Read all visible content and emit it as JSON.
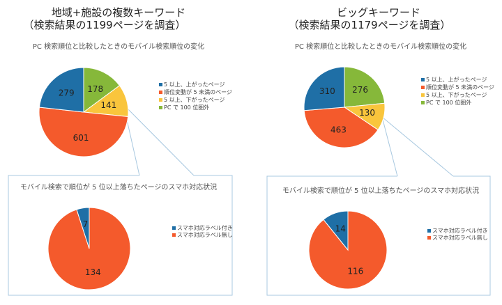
{
  "chart_data": [
    {
      "type": "pie",
      "group_title": [
        "地域+施設の複数キーワード",
        "（検索結果の1199ページを調査）"
      ],
      "title": "PC 検索順位と比較したときのモバイル検索順位の変化",
      "categories": [
        "5 以上、上がったページ",
        "順位変動が 5 未満のページ",
        "5 以上、下がったページ",
        "PC で 100 位圏外"
      ],
      "values": [
        279,
        601,
        141,
        178
      ],
      "colors": [
        "#1f6fa6",
        "#f45a2c",
        "#f9c53c",
        "#86b83a"
      ],
      "legend": "right"
    },
    {
      "type": "pie",
      "title": "モバイル検索で順位が 5 位以上落ちたページのスマホ対応状況",
      "categories": [
        "スマホ対応ラベル付き",
        "スマホ対応ラベル無し"
      ],
      "values": [
        7,
        134
      ],
      "colors": [
        "#1f6fa6",
        "#f45a2c"
      ],
      "legend": "right"
    },
    {
      "type": "pie",
      "group_title": [
        "ビッグキーワード",
        "（検索結果の1179ページを調査）"
      ],
      "title": "PC 検索順位と比較したときのモバイル検索順位の変化",
      "categories": [
        "5 以上、上がったページ",
        "順位変動が 5 未満のページ",
        "5 以上、下がったページ",
        "PC で 100 位圏外"
      ],
      "values": [
        310,
        463,
        130,
        276
      ],
      "colors": [
        "#1f6fa6",
        "#f45a2c",
        "#f9c53c",
        "#86b83a"
      ],
      "legend": "right"
    },
    {
      "type": "pie",
      "title": "モバイル検索で順位が 5 位以上落ちたページのスマホ対応状況",
      "categories": [
        "スマホ対応ラベル付き",
        "スマホ対応ラベル無し"
      ],
      "values": [
        14,
        116
      ],
      "colors": [
        "#1f6fa6",
        "#f45a2c"
      ],
      "legend": "right"
    }
  ]
}
